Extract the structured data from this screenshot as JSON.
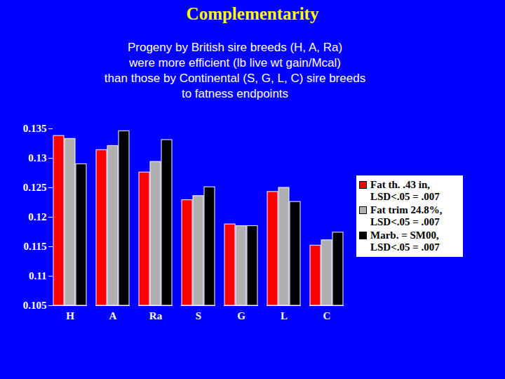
{
  "chart_data": {
    "type": "bar",
    "title": "Complementarity",
    "subtitle": "Progeny by British sire breeds (H, A, Ra)\nwere more efficient (lb live wt gain/Mcal)\nthan those by Continental (S, G, L, C) sire breeds\nto fatness endpoints",
    "categories": [
      "H",
      "A",
      "Ra",
      "S",
      "G",
      "L",
      "C"
    ],
    "series": [
      {
        "name": "Fat th. .43 in, LSD<.05 = .007",
        "color": "#ff0000",
        "values": [
          0.1338,
          0.1314,
          0.1276,
          0.1229,
          0.1188,
          0.1243,
          0.1152
        ]
      },
      {
        "name": "Fat trim 24.8%, LSD<.05 = .007",
        "color": "#b0b0b0",
        "values": [
          0.1333,
          0.1321,
          0.1294,
          0.1236,
          0.1185,
          0.125,
          0.1161
        ]
      },
      {
        "name": "Marb. = SM00, LSD<.05 = .007",
        "color": "#000000",
        "values": [
          0.129,
          0.1346,
          0.1331,
          0.1251,
          0.1185,
          0.1226,
          0.1174
        ]
      }
    ],
    "ylim": [
      0.105,
      0.135
    ],
    "yticks": [
      0.105,
      0.11,
      0.115,
      0.12,
      0.125,
      0.13,
      0.135
    ],
    "grid": false,
    "legend": "right"
  }
}
